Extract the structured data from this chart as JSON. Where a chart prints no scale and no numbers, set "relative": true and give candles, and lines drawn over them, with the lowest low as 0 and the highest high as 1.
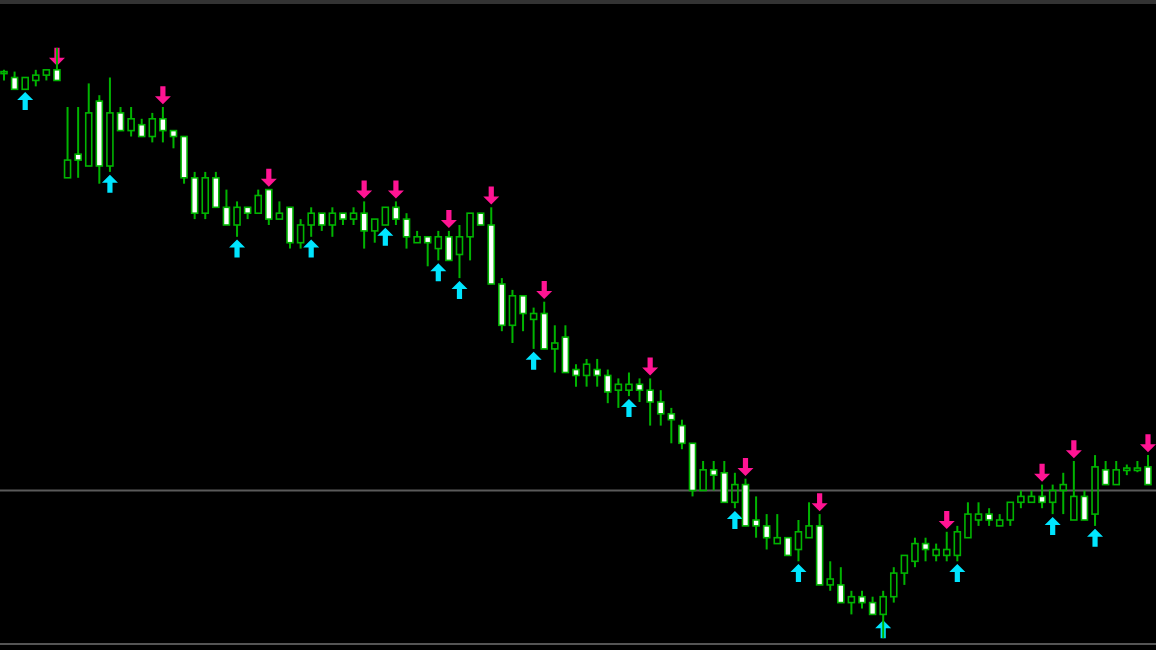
{
  "chart_data": {
    "type": "candlestick",
    "relative": true,
    "categories": [
      null,
      null,
      null,
      null,
      null,
      null,
      null,
      null,
      null,
      null,
      null,
      null,
      null,
      null,
      null,
      null,
      null,
      null,
      null,
      null,
      null,
      null,
      null,
      null,
      null,
      null,
      null,
      null,
      null,
      null,
      null,
      null,
      null,
      null,
      null,
      null,
      null,
      null,
      null,
      null,
      null,
      null,
      null,
      null,
      null,
      null,
      null,
      null,
      null,
      null,
      null,
      null,
      null,
      null,
      null,
      null,
      null,
      null,
      null,
      null,
      null,
      null,
      null,
      null,
      null,
      null,
      null,
      null,
      null,
      null,
      null,
      null,
      null,
      null,
      null,
      null,
      null,
      null,
      null,
      null,
      null,
      null,
      null,
      null,
      null,
      null,
      null,
      null,
      null,
      null,
      null,
      null,
      null,
      null,
      null,
      null,
      null,
      null,
      null,
      null,
      null,
      null,
      null,
      null,
      null,
      null,
      null,
      null,
      null
    ],
    "ohlc": [
      [
        0.959,
        0.963,
        0.945,
        0.96
      ],
      [
        0.95,
        0.96,
        0.93,
        0.93
      ],
      [
        0.93,
        0.95,
        0.93,
        0.95
      ],
      [
        0.945,
        0.963,
        0.935,
        0.954
      ],
      [
        0.954,
        0.963,
        0.945,
        0.963
      ],
      [
        0.963,
        1,
        0.945,
        0.945
      ],
      [
        0.78,
        0.9,
        0.78,
        0.81
      ],
      [
        0.82,
        0.9,
        0.78,
        0.81
      ],
      [
        0.8,
        0.94,
        0.8,
        0.89
      ],
      [
        0.91,
        0.92,
        0.77,
        0.8
      ],
      [
        0.8,
        0.95,
        0.79,
        0.89
      ],
      [
        0.89,
        0.9,
        0.86,
        0.86
      ],
      [
        0.86,
        0.9,
        0.85,
        0.88
      ],
      [
        0.87,
        0.88,
        0.85,
        0.85
      ],
      [
        0.85,
        0.89,
        0.84,
        0.88
      ],
      [
        0.88,
        0.9,
        0.84,
        0.86
      ],
      [
        0.86,
        0.86,
        0.83,
        0.85
      ],
      [
        0.85,
        0.85,
        0.77,
        0.78
      ],
      [
        0.78,
        0.79,
        0.71,
        0.72
      ],
      [
        0.72,
        0.79,
        0.71,
        0.78
      ],
      [
        0.78,
        0.79,
        0.73,
        0.73
      ],
      [
        0.73,
        0.76,
        0.7,
        0.7
      ],
      [
        0.7,
        0.74,
        0.68,
        0.73
      ],
      [
        0.73,
        0.73,
        0.71,
        0.72
      ],
      [
        0.72,
        0.76,
        0.72,
        0.75
      ],
      [
        0.76,
        0.76,
        0.7,
        0.71
      ],
      [
        0.71,
        0.74,
        0.71,
        0.72
      ],
      [
        0.73,
        0.73,
        0.66,
        0.67
      ],
      [
        0.67,
        0.71,
        0.66,
        0.7
      ],
      [
        0.7,
        0.73,
        0.68,
        0.72
      ],
      [
        0.72,
        0.72,
        0.69,
        0.7
      ],
      [
        0.7,
        0.73,
        0.68,
        0.72
      ],
      [
        0.72,
        0.72,
        0.7,
        0.71
      ],
      [
        0.71,
        0.73,
        0.7,
        0.72
      ],
      [
        0.72,
        0.74,
        0.66,
        0.69
      ],
      [
        0.69,
        0.71,
        0.67,
        0.71
      ],
      [
        0.7,
        0.73,
        0.7,
        0.73
      ],
      [
        0.73,
        0.74,
        0.7,
        0.71
      ],
      [
        0.71,
        0.72,
        0.66,
        0.68
      ],
      [
        0.67,
        0.69,
        0.67,
        0.68
      ],
      [
        0.68,
        0.68,
        0.63,
        0.67
      ],
      [
        0.66,
        0.69,
        0.64,
        0.68
      ],
      [
        0.68,
        0.69,
        0.64,
        0.64
      ],
      [
        0.65,
        0.7,
        0.61,
        0.68
      ],
      [
        0.68,
        0.72,
        0.64,
        0.72
      ],
      [
        0.72,
        0.72,
        0.7,
        0.7
      ],
      [
        0.7,
        0.73,
        0.6,
        0.6
      ],
      [
        0.6,
        0.61,
        0.52,
        0.53
      ],
      [
        0.53,
        0.59,
        0.5,
        0.58
      ],
      [
        0.58,
        0.58,
        0.52,
        0.55
      ],
      [
        0.54,
        0.56,
        0.49,
        0.55
      ],
      [
        0.55,
        0.57,
        0.49,
        0.49
      ],
      [
        0.49,
        0.53,
        0.45,
        0.5
      ],
      [
        0.51,
        0.53,
        0.45,
        0.45
      ],
      [
        0.455,
        0.464,
        0.426,
        0.445
      ],
      [
        0.445,
        0.473,
        0.426,
        0.464
      ],
      [
        0.455,
        0.473,
        0.426,
        0.445
      ],
      [
        0.445,
        0.455,
        0.398,
        0.417
      ],
      [
        0.42,
        0.44,
        0.39,
        0.43
      ],
      [
        0.42,
        0.45,
        0.41,
        0.43
      ],
      [
        0.43,
        0.44,
        0.4,
        0.42
      ],
      [
        0.42,
        0.44,
        0.36,
        0.4
      ],
      [
        0.4,
        0.42,
        0.36,
        0.38
      ],
      [
        0.38,
        0.39,
        0.33,
        0.37
      ],
      [
        0.36,
        0.37,
        0.32,
        0.33
      ],
      [
        0.33,
        0.33,
        0.24,
        0.25
      ],
      [
        0.25,
        0.3,
        0.25,
        0.285
      ],
      [
        0.285,
        0.3,
        0.25,
        0.276
      ],
      [
        0.28,
        0.3,
        0.23,
        0.23
      ],
      [
        0.23,
        0.28,
        0.22,
        0.26
      ],
      [
        0.26,
        0.27,
        0.19,
        0.19
      ],
      [
        0.2,
        0.24,
        0.17,
        0.19
      ],
      [
        0.19,
        0.21,
        0.15,
        0.17
      ],
      [
        0.16,
        0.21,
        0.16,
        0.17
      ],
      [
        0.17,
        0.17,
        0.14,
        0.14
      ],
      [
        0.15,
        0.2,
        0.13,
        0.18
      ],
      [
        0.17,
        0.23,
        0.17,
        0.19
      ],
      [
        0.19,
        0.21,
        0.09,
        0.09
      ],
      [
        0.09,
        0.13,
        0.08,
        0.1
      ],
      [
        0.09,
        0.12,
        0.06,
        0.06
      ],
      [
        0.06,
        0.08,
        0.04,
        0.07
      ],
      [
        0.07,
        0.08,
        0.05,
        0.06
      ],
      [
        0.06,
        0.07,
        0.04,
        0.04
      ],
      [
        0.04,
        0.08,
        0,
        0.07
      ],
      [
        0.07,
        0.12,
        0.06,
        0.11
      ],
      [
        0.11,
        0.14,
        0.09,
        0.14
      ],
      [
        0.13,
        0.17,
        0.12,
        0.16
      ],
      [
        0.16,
        0.17,
        0.13,
        0.15
      ],
      [
        0.14,
        0.16,
        0.13,
        0.15
      ],
      [
        0.14,
        0.18,
        0.13,
        0.15
      ],
      [
        0.14,
        0.19,
        0.13,
        0.18
      ],
      [
        0.17,
        0.23,
        0.17,
        0.21
      ],
      [
        0.2,
        0.23,
        0.19,
        0.21
      ],
      [
        0.21,
        0.22,
        0.19,
        0.2
      ],
      [
        0.19,
        0.21,
        0.19,
        0.2
      ],
      [
        0.2,
        0.23,
        0.19,
        0.23
      ],
      [
        0.23,
        0.25,
        0.22,
        0.24
      ],
      [
        0.23,
        0.25,
        0.23,
        0.24
      ],
      [
        0.24,
        0.26,
        0.22,
        0.23
      ],
      [
        0.23,
        0.26,
        0.21,
        0.25
      ],
      [
        0.25,
        0.28,
        0.21,
        0.26
      ],
      [
        0.2,
        0.3,
        0.2,
        0.24
      ],
      [
        0.24,
        0.25,
        0.2,
        0.2
      ],
      [
        0.21,
        0.31,
        0.19,
        0.29
      ],
      [
        0.285,
        0.3,
        0.26,
        0.26
      ],
      [
        0.26,
        0.3,
        0.26,
        0.285
      ],
      [
        0.284,
        0.294,
        0.276,
        0.288
      ],
      [
        0.284,
        0.3,
        0.281,
        0.288
      ],
      [
        0.29,
        0.31,
        0.26,
        0.26
      ]
    ],
    "series": [
      {
        "type": "scatter",
        "color": "#ff1493",
        "values": [
          null,
          null,
          null,
          null,
          null,
          0.985,
          null,
          null,
          null,
          null,
          null,
          null,
          null,
          null,
          null,
          0.92,
          null,
          null,
          null,
          null,
          null,
          null,
          null,
          null,
          null,
          0.78,
          null,
          null,
          null,
          null,
          null,
          null,
          null,
          null,
          0.76,
          null,
          null,
          0.76,
          null,
          null,
          null,
          null,
          0.71,
          null,
          null,
          null,
          0.75,
          null,
          null,
          null,
          null,
          0.59,
          null,
          null,
          null,
          null,
          null,
          null,
          null,
          null,
          null,
          0.46,
          null,
          null,
          null,
          null,
          null,
          null,
          null,
          null,
          0.29,
          null,
          null,
          null,
          null,
          null,
          null,
          0.23,
          null,
          null,
          null,
          null,
          null,
          null,
          null,
          null,
          null,
          null,
          null,
          0.2,
          null,
          null,
          null,
          null,
          null,
          null,
          null,
          null,
          0.28,
          null,
          null,
          0.32,
          null,
          null,
          null,
          null,
          null,
          null,
          0.33
        ]
      },
      {
        "type": "scatter",
        "color": "#00e5ff",
        "values": [
          null,
          null,
          0.91,
          null,
          null,
          null,
          null,
          null,
          null,
          null,
          0.77,
          null,
          null,
          null,
          null,
          null,
          null,
          null,
          null,
          null,
          null,
          null,
          0.66,
          null,
          null,
          null,
          null,
          null,
          null,
          0.66,
          null,
          null,
          null,
          null,
          null,
          null,
          0.68,
          null,
          null,
          null,
          null,
          0.62,
          null,
          0.59,
          null,
          null,
          null,
          null,
          null,
          null,
          0.47,
          null,
          null,
          null,
          null,
          null,
          null,
          null,
          null,
          0.39,
          null,
          null,
          null,
          null,
          null,
          null,
          null,
          null,
          null,
          0.2,
          null,
          null,
          null,
          null,
          null,
          0.11,
          null,
          null,
          null,
          null,
          null,
          null,
          null,
          0.015,
          null,
          null,
          null,
          null,
          null,
          null,
          0.11,
          null,
          null,
          null,
          null,
          null,
          null,
          null,
          null,
          0.19,
          null,
          null,
          null,
          0.17,
          null,
          null,
          null,
          null,
          null
        ]
      }
    ],
    "ref_lines": [
      {
        "axis": "y",
        "value": 0.25,
        "color": "#5a5a5a"
      }
    ]
  }
}
